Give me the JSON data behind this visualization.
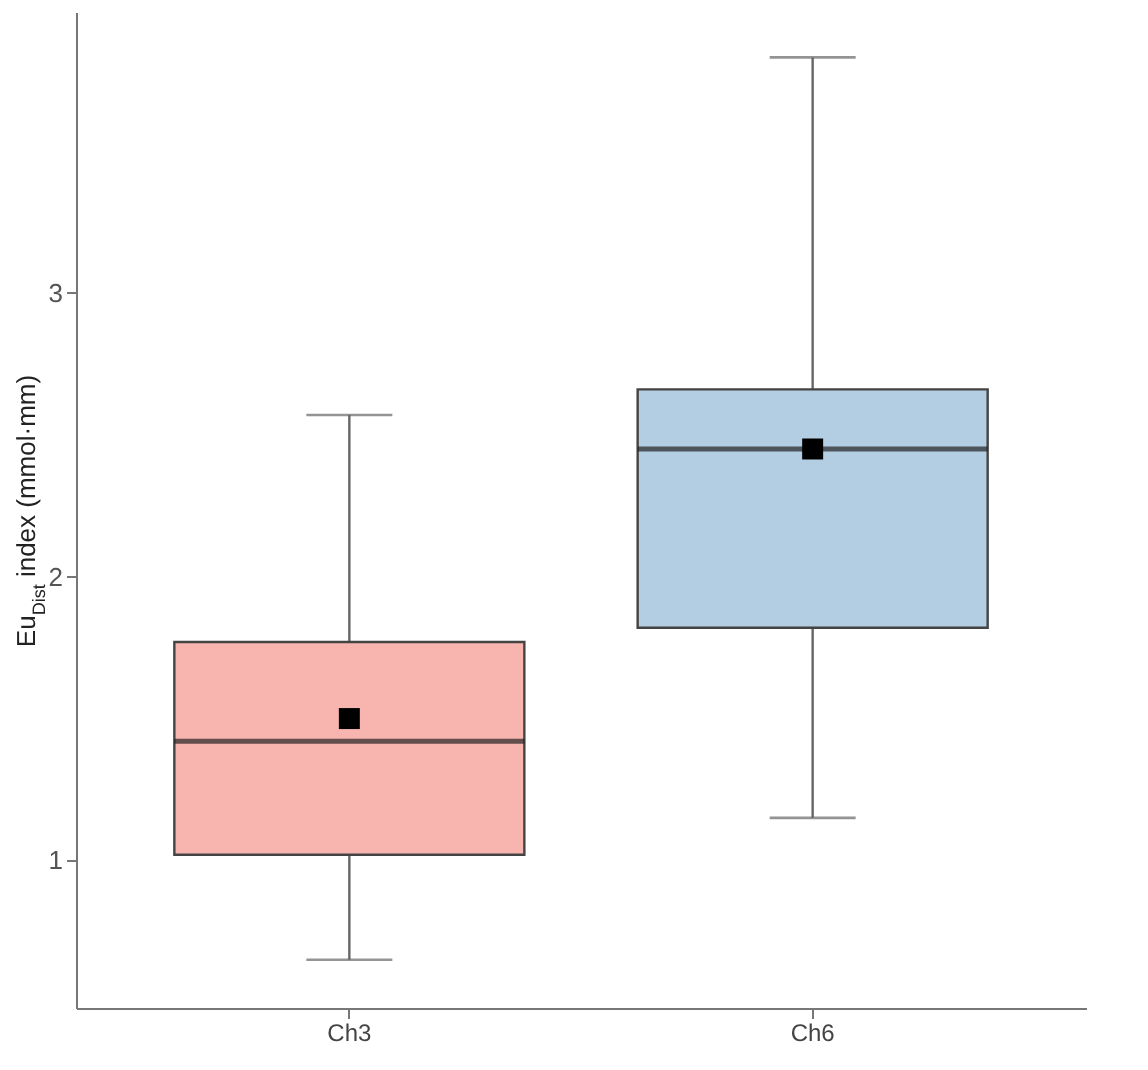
{
  "chart_data": {
    "type": "box",
    "ylabel": "Eu$_{Dist}$ index (mmol·mm)",
    "categories": [
      "Ch3",
      "Ch6"
    ],
    "boxes": [
      {
        "low": 0.65,
        "q1": 1.02,
        "median": 1.42,
        "q3": 1.77,
        "high": 2.57,
        "mean": 1.5
      },
      {
        "low": 1.15,
        "q1": 1.82,
        "median": 2.45,
        "q3": 2.66,
        "high": 3.83,
        "mean": 2.45
      }
    ],
    "colors": [
      "#f8b4ae",
      "#b3cde3"
    ],
    "ylim": [
      0.48,
      3.99
    ],
    "yticks": [
      1,
      2,
      3
    ],
    "grid": false,
    "legend": false,
    "marker": "square"
  }
}
